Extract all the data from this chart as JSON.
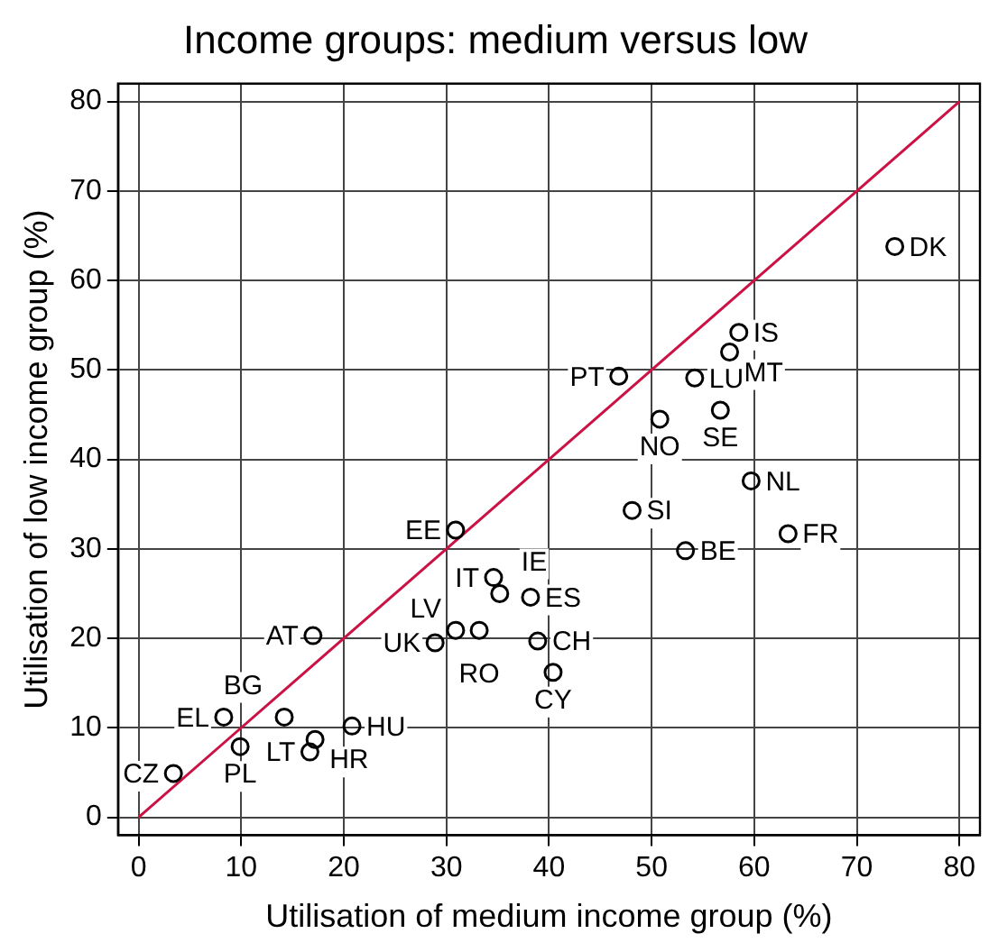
{
  "chart_data": {
    "type": "scatter",
    "title": "Income groups: medium versus low",
    "xlabel": "Utilisation of medium income group (%)",
    "ylabel": "Utilisation of low income group (%)",
    "xlim": [
      -2,
      82
    ],
    "ylim": [
      -2,
      82
    ],
    "xticks": [
      0,
      10,
      20,
      30,
      40,
      50,
      60,
      70,
      80
    ],
    "yticks": [
      0,
      10,
      20,
      30,
      40,
      50,
      60,
      70,
      80
    ],
    "grid": true,
    "legend": false,
    "marker": "circle",
    "series": [
      {
        "color": "#000000",
        "x": [
          73.7,
          58.5,
          57.6,
          46.8,
          54.2,
          50.8,
          56.7,
          59.7,
          48.1,
          30.9,
          53.3,
          63.3,
          34.6,
          35.2,
          38.2,
          30.9,
          33.2,
          28.9,
          38.9,
          40.4,
          17.0,
          8.3,
          14.2,
          20.8,
          17.2,
          16.7,
          9.9,
          3.4
        ],
        "values": [
          63.8,
          54.2,
          52.0,
          49.3,
          49.1,
          44.5,
          45.5,
          37.6,
          34.3,
          32.1,
          29.8,
          31.7,
          26.8,
          25.0,
          24.6,
          20.9,
          20.9,
          19.5,
          19.7,
          16.2,
          20.3,
          11.2,
          11.2,
          10.2,
          8.7,
          7.3,
          7.9,
          4.9
        ]
      },
      {
        "type": "line",
        "color": "#cc1144",
        "marker": "none",
        "x": [
          0,
          80
        ],
        "values": [
          0,
          80
        ]
      }
    ],
    "annotations": [
      {
        "text": "DK",
        "x": 73.7,
        "y": 63.8
      },
      {
        "text": "IS",
        "x": 58.5,
        "y": 54.2
      },
      {
        "text": "MT",
        "x": 57.6,
        "y": 52.0
      },
      {
        "text": "PT",
        "x": 46.8,
        "y": 49.3
      },
      {
        "text": "LU",
        "x": 54.2,
        "y": 49.1
      },
      {
        "text": "NO",
        "x": 50.8,
        "y": 44.5
      },
      {
        "text": "SE",
        "x": 56.7,
        "y": 45.5
      },
      {
        "text": "NL",
        "x": 59.7,
        "y": 37.6
      },
      {
        "text": "SI",
        "x": 48.1,
        "y": 34.3
      },
      {
        "text": "EE",
        "x": 30.9,
        "y": 32.1
      },
      {
        "text": "BE",
        "x": 53.3,
        "y": 29.8
      },
      {
        "text": "FR",
        "x": 63.3,
        "y": 31.7
      },
      {
        "text": "IT",
        "x": 34.6,
        "y": 26.8
      },
      {
        "text": "IE",
        "x": 35.2,
        "y": 25.0
      },
      {
        "text": "ES",
        "x": 38.2,
        "y": 24.6
      },
      {
        "text": "LV",
        "x": 30.9,
        "y": 20.9
      },
      {
        "text": "RO",
        "x": 33.2,
        "y": 20.9
      },
      {
        "text": "UK",
        "x": 28.9,
        "y": 19.5
      },
      {
        "text": "CH",
        "x": 38.9,
        "y": 19.7
      },
      {
        "text": "CY",
        "x": 40.4,
        "y": 16.2
      },
      {
        "text": "AT",
        "x": 17.0,
        "y": 20.3
      },
      {
        "text": "EL",
        "x": 8.3,
        "y": 11.2
      },
      {
        "text": "BG",
        "x": 14.2,
        "y": 11.2
      },
      {
        "text": "HU",
        "x": 20.8,
        "y": 10.2
      },
      {
        "text": "HR",
        "x": 17.2,
        "y": 8.7
      },
      {
        "text": "LT",
        "x": 16.7,
        "y": 7.3
      },
      {
        "text": "PL",
        "x": 9.9,
        "y": 7.9
      },
      {
        "text": "CZ",
        "x": 3.4,
        "y": 4.9
      }
    ]
  }
}
